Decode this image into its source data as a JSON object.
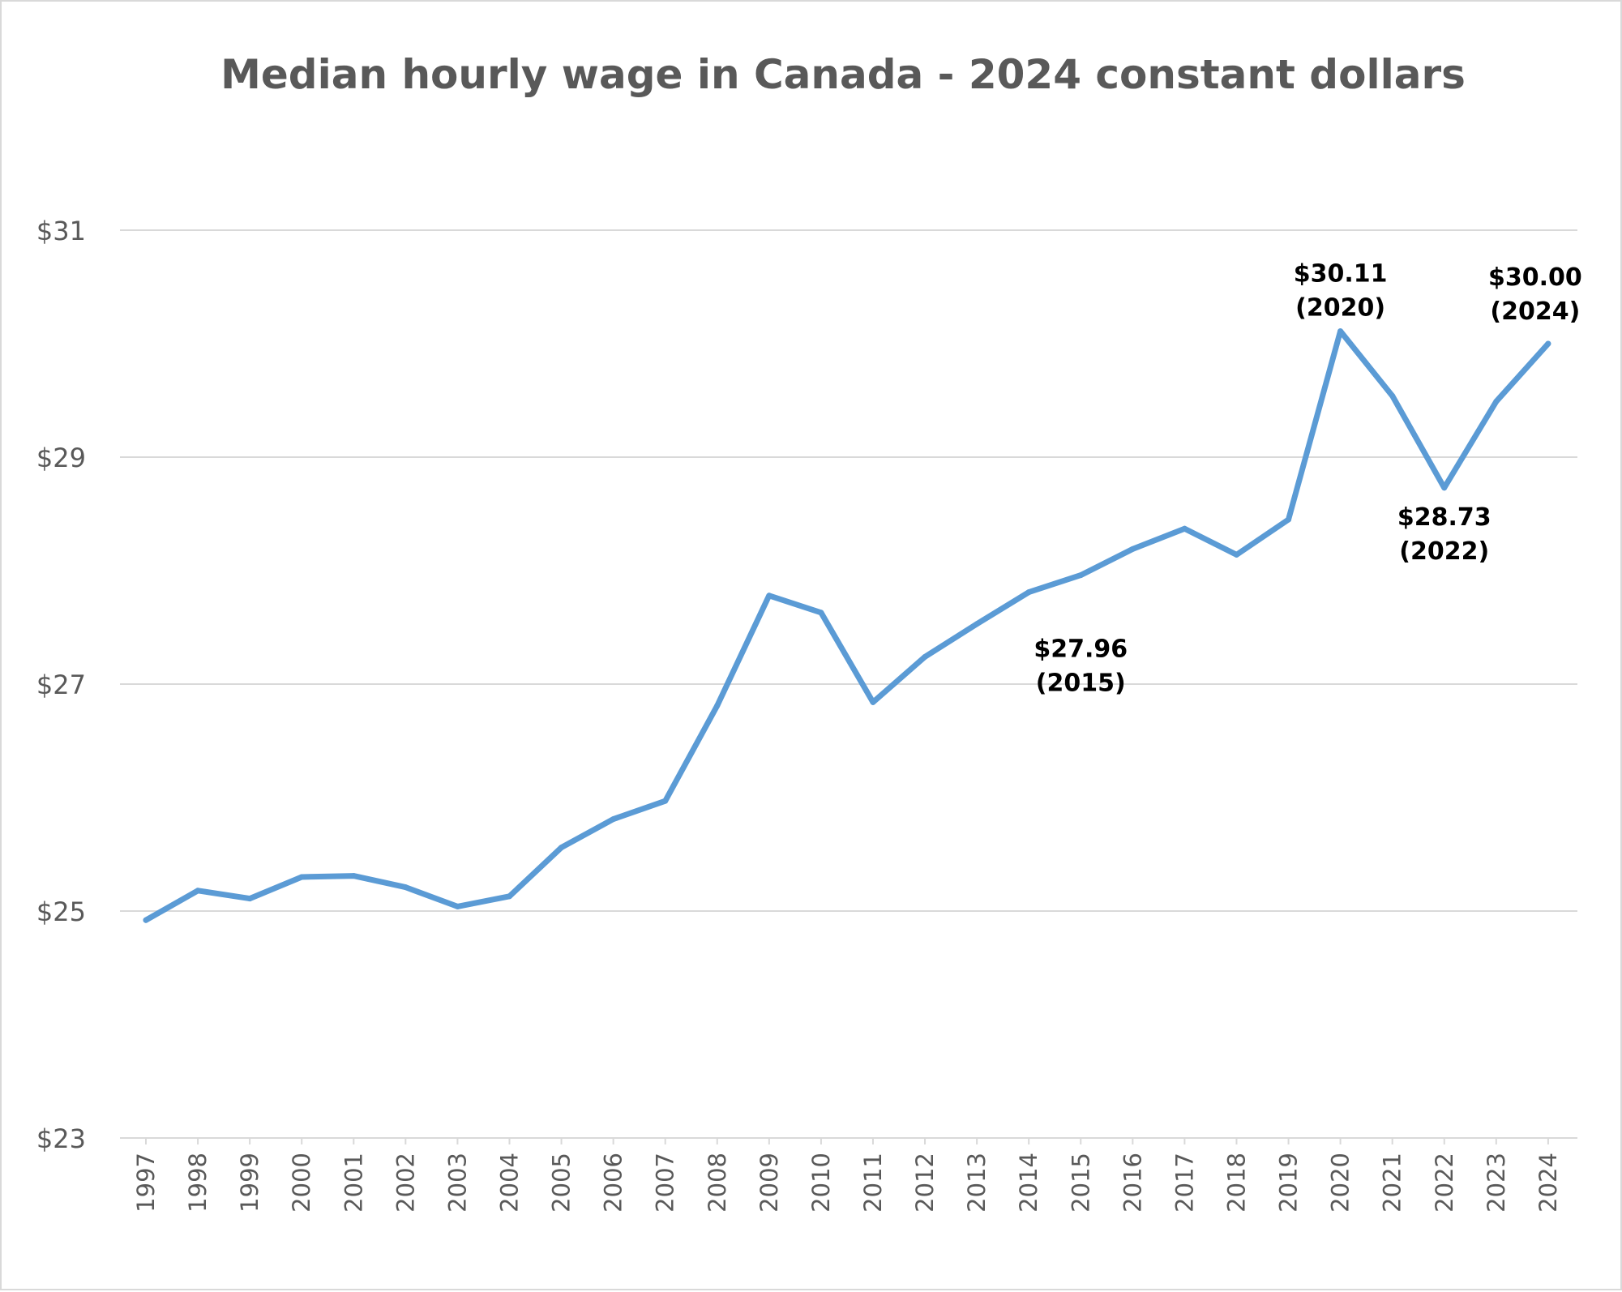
{
  "chart_data": {
    "type": "line",
    "title": "Median hourly wage in Canada - 2024 constant dollars",
    "xlabel": "",
    "ylabel": "",
    "ylim": [
      23,
      31
    ],
    "yticks": [
      {
        "value": 23,
        "label": "$23"
      },
      {
        "value": 25,
        "label": "$25"
      },
      {
        "value": 27,
        "label": "$27"
      },
      {
        "value": 29,
        "label": "$29"
      },
      {
        "value": 31,
        "label": "$31"
      }
    ],
    "grid": true,
    "legend": "none",
    "x": [
      "1997",
      "1998",
      "1999",
      "2000",
      "2001",
      "2002",
      "2003",
      "2004",
      "2005",
      "2006",
      "2007",
      "2008",
      "2009",
      "2010",
      "2011",
      "2012",
      "2013",
      "2014",
      "2015",
      "2016",
      "2017",
      "2018",
      "2019",
      "2020",
      "2021",
      "2022",
      "2023",
      "2024"
    ],
    "series": [
      {
        "color": "#5b9bd5",
        "values": [
          24.92,
          25.18,
          25.11,
          25.3,
          25.31,
          25.21,
          25.04,
          25.13,
          25.56,
          25.81,
          25.97,
          26.81,
          27.78,
          27.63,
          26.84,
          27.24,
          27.53,
          27.81,
          27.96,
          28.19,
          28.37,
          28.14,
          28.45,
          30.11,
          29.54,
          28.73,
          29.49,
          30.0
        ]
      }
    ],
    "annotations": [
      {
        "x": "2015",
        "line1": "$27.96",
        "line2": "(2015)"
      },
      {
        "x": "2020",
        "line1": "$30.11",
        "line2": "(2020)"
      },
      {
        "x": "2022",
        "line1": "$28.73",
        "line2": "(2022)"
      },
      {
        "x": "2024",
        "line1": "$30.00",
        "line2": "(2024)"
      }
    ]
  }
}
